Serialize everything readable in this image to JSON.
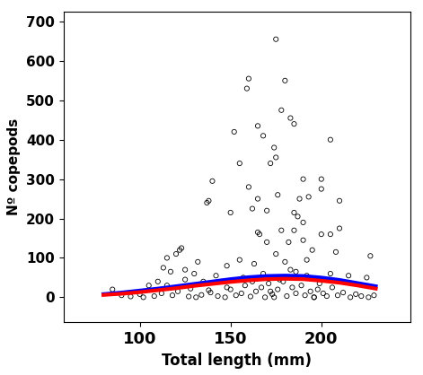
{
  "chart_data": {
    "type": "scatter",
    "x_label": "Total length (mm)",
    "y_label": "Nº copepods",
    "xlim": [
      58,
      249
    ],
    "ylim": [
      -64,
      726
    ],
    "xticks": [
      100,
      150,
      200
    ],
    "yticks": [
      0,
      100,
      200,
      300,
      400,
      500,
      600,
      700
    ],
    "grid": false,
    "series": [
      {
        "type": "scatter",
        "color": "#000000",
        "marker": "o",
        "x": [
          175,
          160,
          159,
          180,
          178,
          183,
          185,
          165,
          168,
          152,
          205,
          174,
          140,
          200,
          190,
          160,
          200,
          155,
          175,
          172,
          138,
          137,
          162,
          150,
          170,
          185,
          187,
          190,
          193,
          188,
          210,
          165,
          176,
          210,
          205,
          200,
          165,
          166,
          178,
          185,
          170,
          182,
          190,
          195,
          208,
          175,
          227,
          123,
          120,
          122,
          115,
          132,
          148,
          113,
          117,
          125,
          130,
          142,
          155,
          163,
          180,
          192,
          205,
          215,
          225,
          105,
          110,
          125,
          135,
          145,
          85,
          90,
          95,
          100,
          102,
          108,
          112,
          118,
          121,
          127,
          131,
          134,
          139,
          143,
          147,
          150,
          153,
          156,
          158,
          161,
          164,
          167,
          169,
          171,
          173,
          176,
          179,
          181,
          184,
          186,
          189,
          191,
          194,
          196,
          198,
          201,
          203,
          206,
          209,
          212,
          216,
          219,
          222,
          226,
          229,
          157,
          168,
          177,
          183,
          192,
          199,
          172,
          162,
          186,
          148,
          138,
          128,
          115,
          174,
          196
        ],
        "values": [
          655,
          555,
          530,
          550,
          475,
          455,
          440,
          435,
          410,
          420,
          400,
          380,
          295,
          300,
          300,
          280,
          275,
          340,
          355,
          340,
          245,
          240,
          225,
          215,
          220,
          215,
          205,
          190,
          255,
          250,
          245,
          250,
          260,
          175,
          160,
          160,
          165,
          160,
          170,
          170,
          140,
          140,
          145,
          120,
          115,
          110,
          105,
          125,
          110,
          120,
          100,
          90,
          80,
          75,
          65,
          70,
          60,
          55,
          95,
          85,
          90,
          95,
          60,
          55,
          50,
          30,
          40,
          45,
          40,
          40,
          20,
          5,
          2,
          8,
          0,
          3,
          10,
          5,
          15,
          2,
          0,
          6,
          12,
          3,
          0,
          20,
          5,
          10,
          30,
          2,
          15,
          25,
          0,
          35,
          8,
          20,
          40,
          3,
          25,
          10,
          30,
          5,
          15,
          0,
          20,
          10,
          3,
          25,
          5,
          12,
          0,
          8,
          3,
          0,
          5,
          50,
          60,
          45,
          70,
          55,
          35,
          15,
          40,
          65,
          25,
          18,
          22,
          30,
          0,
          0
        ]
      },
      {
        "type": "line",
        "color": "#0000ff",
        "x": [
          80,
          90,
          100,
          110,
          120,
          130,
          140,
          150,
          160,
          170,
          180,
          190,
          200,
          210,
          220,
          230
        ],
        "values": [
          8,
          12,
          17,
          22,
          28,
          34,
          40,
          46,
          51,
          54,
          55,
          54,
          50,
          44,
          36,
          28
        ]
      },
      {
        "type": "line",
        "color": "#ff0000",
        "x": [
          80,
          90,
          100,
          110,
          120,
          130,
          140,
          150,
          160,
          170,
          180,
          190,
          200,
          210,
          220,
          230
        ],
        "values": [
          6,
          9,
          13,
          18,
          23,
          29,
          34,
          39,
          43,
          46,
          47,
          46,
          42,
          37,
          30,
          22
        ]
      }
    ]
  }
}
